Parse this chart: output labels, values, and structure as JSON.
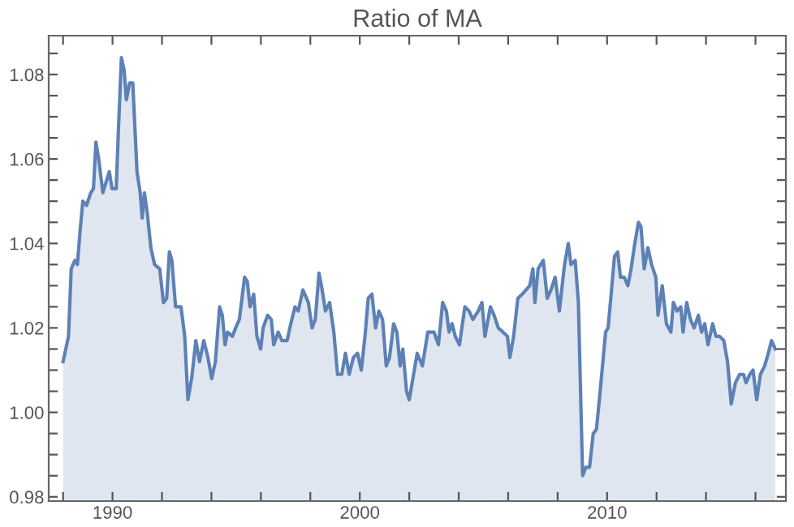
{
  "chart_data": {
    "type": "area",
    "title": "Ratio of MA",
    "xlim": [
      1987.42,
      2017.23
    ],
    "ylim": [
      0.979,
      1.0892
    ],
    "xticks": [
      {
        "value": 1988,
        "label": null
      },
      1990,
      {
        "value": 1992,
        "label": null
      },
      {
        "value": 1994,
        "label": null
      },
      {
        "value": 1996,
        "label": null
      },
      {
        "value": 1998,
        "label": null
      },
      2000,
      {
        "value": 2002,
        "label": null
      },
      {
        "value": 2004,
        "label": null
      },
      {
        "value": 2006,
        "label": null
      },
      {
        "value": 2008,
        "label": null
      },
      2010,
      {
        "value": 2012,
        "label": null
      },
      {
        "value": 2014,
        "label": null
      },
      {
        "value": 2016,
        "label": null
      }
    ],
    "yticks": [
      0.98,
      {
        "value": 0.985,
        "label": null
      },
      {
        "value": 0.99,
        "label": null
      },
      {
        "value": 0.995,
        "label": null
      },
      {
        "value": 1.0,
        "label": "1.00"
      },
      {
        "value": 1.005,
        "label": null
      },
      {
        "value": 1.01,
        "label": null
      },
      {
        "value": 1.015,
        "label": null
      },
      1.02,
      {
        "value": 1.025,
        "label": null
      },
      {
        "value": 1.03,
        "label": null
      },
      {
        "value": 1.035,
        "label": null
      },
      1.04,
      {
        "value": 1.045,
        "label": null
      },
      {
        "value": 1.05,
        "label": null
      },
      {
        "value": 1.055,
        "label": null
      },
      1.06,
      {
        "value": 1.065,
        "label": null
      },
      {
        "value": 1.07,
        "label": null
      },
      {
        "value": 1.075,
        "label": null
      },
      1.08,
      {
        "value": 1.085,
        "label": null
      }
    ],
    "grid": false,
    "legend": false,
    "series": [
      {
        "color": "#5e81b5",
        "x": [
          1988.0,
          1988.22,
          1988.33,
          1988.48,
          1988.58,
          1988.69,
          1988.8,
          1988.95,
          1989.12,
          1989.23,
          1989.33,
          1989.44,
          1989.61,
          1989.87,
          1989.98,
          1990.15,
          1990.24,
          1990.36,
          1990.47,
          1990.56,
          1990.69,
          1990.82,
          1990.99,
          1991.12,
          1991.2,
          1991.29,
          1991.41,
          1991.55,
          1991.7,
          1991.91,
          1992.06,
          1992.19,
          1992.3,
          1992.4,
          1992.55,
          1992.77,
          1992.92,
          1993.05,
          1993.2,
          1993.37,
          1993.52,
          1993.69,
          1993.86,
          1994.01,
          1994.16,
          1994.33,
          1994.44,
          1994.55,
          1994.65,
          1994.85,
          1994.98,
          1995.13,
          1995.34,
          1995.45,
          1995.56,
          1995.71,
          1995.84,
          1995.99,
          1996.09,
          1996.27,
          1996.42,
          1996.52,
          1996.7,
          1996.85,
          1997.06,
          1997.21,
          1997.38,
          1997.51,
          1997.7,
          1997.92,
          1998.07,
          1998.2,
          1998.35,
          1998.45,
          1998.61,
          1998.78,
          1998.95,
          1999.1,
          1999.27,
          1999.42,
          1999.57,
          1999.74,
          1999.91,
          2000.06,
          2000.21,
          2000.34,
          2000.49,
          2000.64,
          2000.77,
          2000.92,
          2001.07,
          2001.2,
          2001.37,
          2001.5,
          2001.63,
          2001.74,
          2001.89,
          2002.0,
          2002.32,
          2002.53,
          2002.75,
          2003.0,
          2003.18,
          2003.35,
          2003.5,
          2003.61,
          2003.73,
          2003.86,
          2004.03,
          2004.25,
          2004.42,
          2004.57,
          2004.79,
          2004.94,
          2005.06,
          2005.28,
          2005.43,
          2005.6,
          2005.79,
          2005.97,
          2006.07,
          2006.22,
          2006.39,
          2006.57,
          2006.72,
          2006.87,
          2007.0,
          2007.08,
          2007.21,
          2007.42,
          2007.58,
          2007.73,
          2007.9,
          2008.07,
          2008.28,
          2008.43,
          2008.54,
          2008.71,
          2008.84,
          2009.01,
          2009.14,
          2009.29,
          2009.44,
          2009.57,
          2009.72,
          2009.94,
          2010.04,
          2010.15,
          2010.3,
          2010.43,
          2010.54,
          2010.69,
          2010.84,
          2010.97,
          2011.12,
          2011.27,
          2011.37,
          2011.5,
          2011.65,
          2011.8,
          2011.97,
          2012.06,
          2012.23,
          2012.4,
          2012.58,
          2012.68,
          2012.83,
          2012.98,
          2013.07,
          2013.22,
          2013.37,
          2013.52,
          2013.69,
          2013.82,
          2013.95,
          2014.08,
          2014.27,
          2014.4,
          2014.55,
          2014.72,
          2014.87,
          2015.02,
          2015.19,
          2015.36,
          2015.52,
          2015.62,
          2015.77,
          2015.9,
          2016.05,
          2016.2,
          2016.37,
          2016.52,
          2016.65,
          2016.8
        ],
        "values": [
          1.012,
          1.018,
          1.034,
          1.036,
          1.035,
          1.043,
          1.05,
          1.049,
          1.052,
          1.053,
          1.064,
          1.06,
          1.052,
          1.057,
          1.053,
          1.053,
          1.067,
          1.084,
          1.081,
          1.074,
          1.078,
          1.078,
          1.057,
          1.052,
          1.046,
          1.052,
          1.047,
          1.039,
          1.035,
          1.034,
          1.026,
          1.027,
          1.038,
          1.036,
          1.025,
          1.025,
          1.018,
          1.003,
          1.008,
          1.017,
          1.012,
          1.017,
          1.013,
          1.008,
          1.012,
          1.025,
          1.023,
          1.016,
          1.019,
          1.018,
          1.02,
          1.022,
          1.032,
          1.031,
          1.025,
          1.028,
          1.018,
          1.015,
          1.02,
          1.023,
          1.022,
          1.016,
          1.019,
          1.017,
          1.017,
          1.021,
          1.025,
          1.024,
          1.029,
          1.026,
          1.02,
          1.022,
          1.033,
          1.03,
          1.024,
          1.026,
          1.019,
          1.009,
          1.009,
          1.014,
          1.009,
          1.013,
          1.014,
          1.01,
          1.018,
          1.027,
          1.028,
          1.02,
          1.024,
          1.022,
          1.011,
          1.013,
          1.021,
          1.019,
          1.011,
          1.015,
          1.005,
          1.003,
          1.014,
          1.011,
          1.019,
          1.019,
          1.016,
          1.026,
          1.024,
          1.019,
          1.021,
          1.018,
          1.016,
          1.025,
          1.024,
          1.022,
          1.024,
          1.026,
          1.018,
          1.025,
          1.023,
          1.02,
          1.019,
          1.018,
          1.013,
          1.018,
          1.027,
          1.028,
          1.029,
          1.03,
          1.034,
          1.026,
          1.034,
          1.036,
          1.027,
          1.029,
          1.032,
          1.024,
          1.035,
          1.04,
          1.035,
          1.036,
          1.026,
          0.985,
          0.987,
          0.987,
          0.995,
          0.996,
          1.005,
          1.019,
          1.02,
          1.027,
          1.037,
          1.038,
          1.032,
          1.032,
          1.03,
          1.034,
          1.04,
          1.045,
          1.044,
          1.034,
          1.039,
          1.035,
          1.032,
          1.023,
          1.03,
          1.021,
          1.019,
          1.026,
          1.024,
          1.025,
          1.019,
          1.026,
          1.022,
          1.02,
          1.023,
          1.019,
          1.021,
          1.016,
          1.021,
          1.018,
          1.018,
          1.017,
          1.012,
          1.002,
          1.007,
          1.009,
          1.009,
          1.007,
          1.009,
          1.01,
          1.003,
          1.009,
          1.011,
          1.014,
          1.017,
          1.015
        ]
      }
    ]
  }
}
